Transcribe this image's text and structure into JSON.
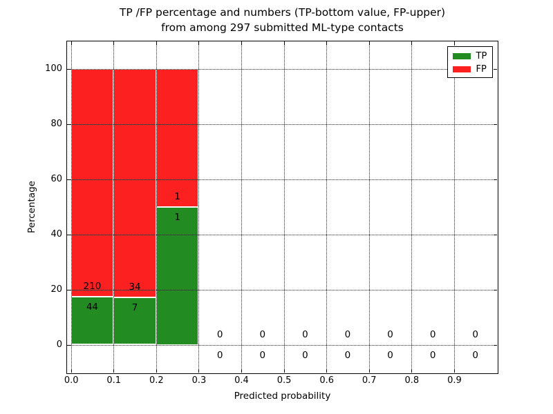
{
  "figure": {
    "title_line1": "TP /FP percentage and numbers (TP-bottom value, FP-upper)",
    "title_line2": "from among 297 submitted ML-type contacts",
    "xlabel": "Predicted probability",
    "ylabel": "Percentage"
  },
  "legend": {
    "items": [
      {
        "label": "TP",
        "color": "#228b22"
      },
      {
        "label": "FP",
        "color": "#fd2020"
      }
    ]
  },
  "chart_data": {
    "type": "bar",
    "stacked": true,
    "normalized": "percent",
    "title": "TP /FP percentage and numbers (TP-bottom value, FP-upper) from among 297 submitted ML-type contacts",
    "xlabel": "Predicted probability",
    "ylabel": "Percentage",
    "total_submitted": 297,
    "bin_edges": [
      0.0,
      0.1,
      0.2,
      0.3,
      0.4,
      0.5,
      0.6,
      0.7,
      0.8,
      0.9,
      1.0
    ],
    "series": [
      {
        "name": "TP",
        "color": "#228b22",
        "counts": [
          44,
          7,
          1,
          0,
          0,
          0,
          0,
          0,
          0,
          0
        ]
      },
      {
        "name": "FP",
        "color": "#fd2020",
        "counts": [
          210,
          34,
          1,
          0,
          0,
          0,
          0,
          0,
          0,
          0
        ]
      }
    ],
    "percent_by_bin": [
      {
        "tp_pct": 17.3,
        "fp_pct": 82.7
      },
      {
        "tp_pct": 17.1,
        "fp_pct": 82.9
      },
      {
        "tp_pct": 50.0,
        "fp_pct": 50.0
      },
      {
        "tp_pct": 0,
        "fp_pct": 0
      },
      {
        "tp_pct": 0,
        "fp_pct": 0
      },
      {
        "tp_pct": 0,
        "fp_pct": 0
      },
      {
        "tp_pct": 0,
        "fp_pct": 0
      },
      {
        "tp_pct": 0,
        "fp_pct": 0
      },
      {
        "tp_pct": 0,
        "fp_pct": 0
      },
      {
        "tp_pct": 0,
        "fp_pct": 0
      }
    ],
    "x_ticks": [
      "0.0",
      "0.1",
      "0.2",
      "0.3",
      "0.4",
      "0.5",
      "0.6",
      "0.7",
      "0.8",
      "0.9"
    ],
    "y_ticks": [
      "0",
      "20",
      "40",
      "60",
      "80",
      "100"
    ],
    "xlim": [
      -0.01,
      1.0
    ],
    "ylim": [
      -10,
      110
    ],
    "grid": true,
    "grid_style": "dotted",
    "legend": [
      "TP",
      "FP"
    ],
    "legend_position": "upper right"
  }
}
